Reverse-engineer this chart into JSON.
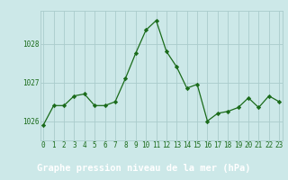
{
  "x": [
    0,
    1,
    2,
    3,
    4,
    5,
    6,
    7,
    8,
    9,
    10,
    11,
    12,
    13,
    14,
    15,
    16,
    17,
    18,
    19,
    20,
    21,
    22,
    23
  ],
  "y": [
    1025.9,
    1026.4,
    1026.4,
    1026.65,
    1026.7,
    1026.4,
    1026.4,
    1026.5,
    1027.1,
    1027.75,
    1028.35,
    1028.6,
    1027.8,
    1027.4,
    1026.85,
    1026.95,
    1026.0,
    1026.2,
    1026.25,
    1026.35,
    1026.6,
    1026.35,
    1026.65,
    1026.5
  ],
  "line_color": "#1a6b1a",
  "marker": "D",
  "marker_size": 2.2,
  "bg_color": "#cce8e8",
  "grid_color": "#aacccc",
  "bottom_bar_color": "#2d6b2d",
  "text_color": "#1a6b1a",
  "xlabel": "Graphe pression niveau de la mer (hPa)",
  "xlabel_fontsize": 7.5,
  "yticks": [
    1026,
    1027,
    1028
  ],
  "ylim": [
    1025.5,
    1028.85
  ],
  "xlim": [
    -0.3,
    23.3
  ],
  "xtick_labels": [
    "0",
    "1",
    "2",
    "3",
    "4",
    "5",
    "6",
    "7",
    "8",
    "9",
    "10",
    "11",
    "12",
    "13",
    "14",
    "15",
    "16",
    "17",
    "18",
    "19",
    "20",
    "21",
    "22",
    "23"
  ],
  "tick_fontsize": 5.5,
  "label_fontsize": 7.5,
  "bottom_bar_height": 0.13
}
